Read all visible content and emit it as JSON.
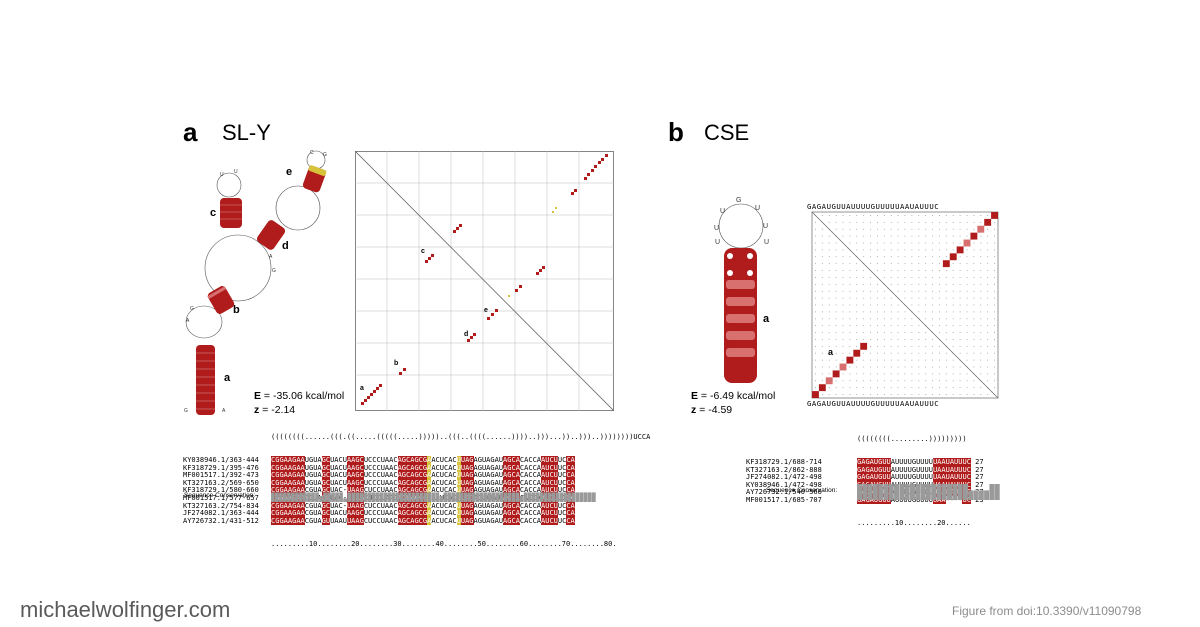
{
  "panel_a": {
    "letter": "a",
    "title": "SL-Y",
    "energy_prefix": "E",
    "energy_value": " = -35.06  kcal/mol",
    "z_prefix": "z",
    "z_value": " = -2.14",
    "helix_labels": [
      "a",
      "b",
      "c",
      "d",
      "e"
    ],
    "dotplot_labels": [
      "a",
      "b",
      "c",
      "d",
      "e"
    ],
    "structure": "((((((((......(((.((.....(((((.....)))))..(((..((((......))))..)))...))..)))..))))))))UCCA",
    "alignment": [
      {
        "id": "KY038946.1/363-444",
        "seq": "CGGAAGAAUGUAGCUACUAAGCUCCCUAACAGCAGCGAACUCACUUAGAGUAGAUAGCACACCAAUCUUCCA"
      },
      {
        "id": "KF318729.1/395-476",
        "seq": "CGGAAGAAUGUAGCUACUAAGCUCCCUAACAGCAGCGAACUCACUUAGAGUAGAUAGCACACCAAUCUUCCA"
      },
      {
        "id": "MF001517.1/392-473",
        "seq": "CGGAAGAAUGUAGCUACUAAGCUCCCUAACAGCAGCGAACUCACUUAGAGUAGAUAGCACACCAAUCUUCCA"
      },
      {
        "id": "KT327163.2/569-650",
        "seq": "CGGAAGAAUGUAGCUACUAAGCUCCCUAACAGCAGCGAACUCACUUAGAGUAGAUAGCACACCAAUCUUCCA"
      },
      {
        "id": "KF318729.1/580-660",
        "seq": "CGGAAGAACGUAGCUAC-UAAGCUCCUAACAGCAGCGAACUCACUUAGAGUAGAUAGCACACCAAUCUUCCA"
      },
      {
        "id": "MF001517.1/577-657",
        "seq": "CGGAAGAACGUAGCUAC-UAAGCUCCUAACAGCAGCGAACUCACUUAGAGUAGAUAGCACACCAAUCUUCCA"
      },
      {
        "id": "KT327163.2/754-834",
        "seq": "CGGAAGAACGUAGCUAC-UAAGCUCCUAACAGCAGCGAACUCACUUAGAGUAGAUAGCACACCAAUCUUCCA"
      },
      {
        "id": "JF274082.1/363-444",
        "seq": "CGGAAGAACGUAGCUACUAAGCUCCCUAACAGCAGCGAACUCACUUAGAGUAGAUAGCACACCAAUCUUCCA"
      },
      {
        "id": "AY726732.1/431-512",
        "seq": "CGGAAGAACGUAGUUAAUUAAGCUCCUAACAGCAGCGAACUCACUUAGAGUAGAUAGCACACCAAUCUUCCA"
      }
    ],
    "ruler": ".........10........20........30........40........50........60........70........80.",
    "conservation_label": "Sequence Conservation:",
    "conservation": [
      0.8,
      0.8,
      0.8,
      0.8,
      0.8,
      0.8,
      0.8,
      0.8,
      0.8,
      0.8,
      0.8,
      0.8,
      0.5,
      0.8,
      0.8,
      0.8,
      0.8,
      0.8,
      0.3,
      0.8,
      0.8,
      0.8,
      0.8,
      0.8,
      0.8,
      0.8,
      0.8,
      0.8,
      0.8,
      0.8,
      0.8,
      0.8,
      0.8,
      0.8,
      0.8,
      0.8,
      0.8,
      0.8,
      0.8,
      0.8,
      0.8,
      0.8,
      0.5,
      0.8,
      0.8,
      0.8,
      0.8,
      0.8,
      0.8,
      0.8,
      0.8,
      0.8,
      0.8,
      0.8,
      0.8,
      0.8,
      0.8,
      0.8,
      0.8,
      0.8,
      0.8,
      0.8,
      0.5,
      0.8,
      0.8,
      0.8,
      0.8,
      0.8,
      0.8,
      0.8,
      0.8,
      0.8,
      0.8,
      0.8,
      0.8,
      0.8,
      0.8,
      0.8,
      0.8,
      0.8,
      0.8
    ]
  },
  "panel_b": {
    "letter": "b",
    "title": "CSE",
    "energy_prefix": "E",
    "energy_value": " = -6.49  kcal/mol",
    "z_prefix": "z",
    "z_value": " = -4.59",
    "helix_label": "a",
    "dotplot_label": "a",
    "sequence_axis": "GAGAUGUUAUUUUGUUUUUAAUAUUUC",
    "loop_letters": [
      "G",
      "U",
      "U",
      "U",
      "U",
      "U",
      "G",
      "U",
      "U",
      "U",
      "U"
    ],
    "stem_left": [
      "G",
      "A",
      "G",
      "A",
      "U",
      "G",
      "U",
      "U"
    ],
    "stem_right": [
      "C",
      "U",
      "U",
      "U",
      "A",
      "U",
      "A",
      "A"
    ],
    "structure": "((((((((.........))))))))) ",
    "alignment": [
      {
        "id": "KF318729.1/688-714",
        "seq": "GAGAUGUUAUUUUGUUUUUAAUAUUUC",
        "len": "27"
      },
      {
        "id": "KT327163.2/862-888",
        "seq": "GAGAUGUUAUUUUGUUUUUAAUAUUUC",
        "len": "27"
      },
      {
        "id": "JF274082.1/472-498",
        "seq": "GAGAUGUUAUUUUGUUUUUAAUAUUUC",
        "len": "27"
      },
      {
        "id": "KY038946.1/472-498",
        "seq": "GAGAUGUUAUUUUGUUUUUAAUAUUUC",
        "len": "27"
      },
      {
        "id": "AY726732.1/540-566",
        "seq": "GAGAUGUUAUUUUGUUUUUAAUAUUUC",
        "len": "27"
      },
      {
        "id": "MF001517.1/685-707",
        "seq": "GAGAUGUUAUUUUGUUUUUAA----UC",
        "len": "23"
      }
    ],
    "ruler": ".........10........20......",
    "conservation_label": "Sequence Conservation:",
    "conservation": [
      1,
      1,
      1,
      1,
      1,
      1,
      1,
      1,
      1,
      1,
      1,
      1,
      1,
      1,
      1,
      1,
      1,
      1,
      1,
      1,
      1,
      0.6,
      0.6,
      0.6,
      0.6,
      1,
      1
    ]
  },
  "footer": {
    "left": "michaelwolfinger.com",
    "right": "Figure from doi:10.3390/v11090798"
  },
  "colors": {
    "paired": "#b01c1c",
    "paired_light": "#d87070",
    "paired_yellow": "#d6c33a",
    "conservation": "#9a9a9a"
  }
}
